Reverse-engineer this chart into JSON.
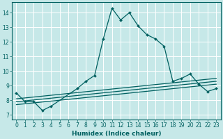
{
  "title": "",
  "xlabel": "Humidex (Indice chaleur)",
  "background_color": "#c6e8e8",
  "grid_color": "#b0d8d8",
  "line_color": "#006060",
  "xlim": [
    -0.5,
    23.5
  ],
  "ylim": [
    6.7,
    14.7
  ],
  "yticks": [
    7,
    8,
    9,
    10,
    11,
    12,
    13,
    14
  ],
  "xticks": [
    0,
    1,
    2,
    3,
    4,
    5,
    6,
    7,
    8,
    9,
    10,
    11,
    12,
    13,
    14,
    15,
    16,
    17,
    18,
    19,
    20,
    21,
    22,
    23
  ],
  "xtick_labels": [
    "0",
    "1",
    "2",
    "3",
    "4",
    "5",
    "6",
    "7",
    "8",
    "9",
    "10",
    "11",
    "12",
    "13",
    "14",
    "15",
    "16",
    "17",
    "18",
    "19",
    "20",
    "21",
    "22",
    "23"
  ],
  "main_x": [
    0,
    1,
    2,
    3,
    4,
    7,
    8,
    9,
    10,
    11,
    12,
    13,
    14,
    15,
    16,
    17,
    18,
    19,
    20,
    21,
    22,
    23
  ],
  "main_y": [
    8.5,
    7.9,
    7.9,
    7.3,
    7.6,
    8.8,
    9.3,
    9.7,
    12.2,
    14.3,
    13.5,
    14.0,
    13.1,
    12.5,
    12.2,
    11.7,
    9.3,
    9.5,
    9.8,
    9.1,
    8.6,
    8.8
  ],
  "line1": {
    "x": [
      0,
      23
    ],
    "y": [
      7.7,
      9.1
    ]
  },
  "line2": {
    "x": [
      0,
      23
    ],
    "y": [
      7.9,
      9.3
    ]
  },
  "line3": {
    "x": [
      0,
      23
    ],
    "y": [
      8.1,
      9.5
    ]
  },
  "tick_fontsize": 5.5,
  "xlabel_fontsize": 6.5
}
